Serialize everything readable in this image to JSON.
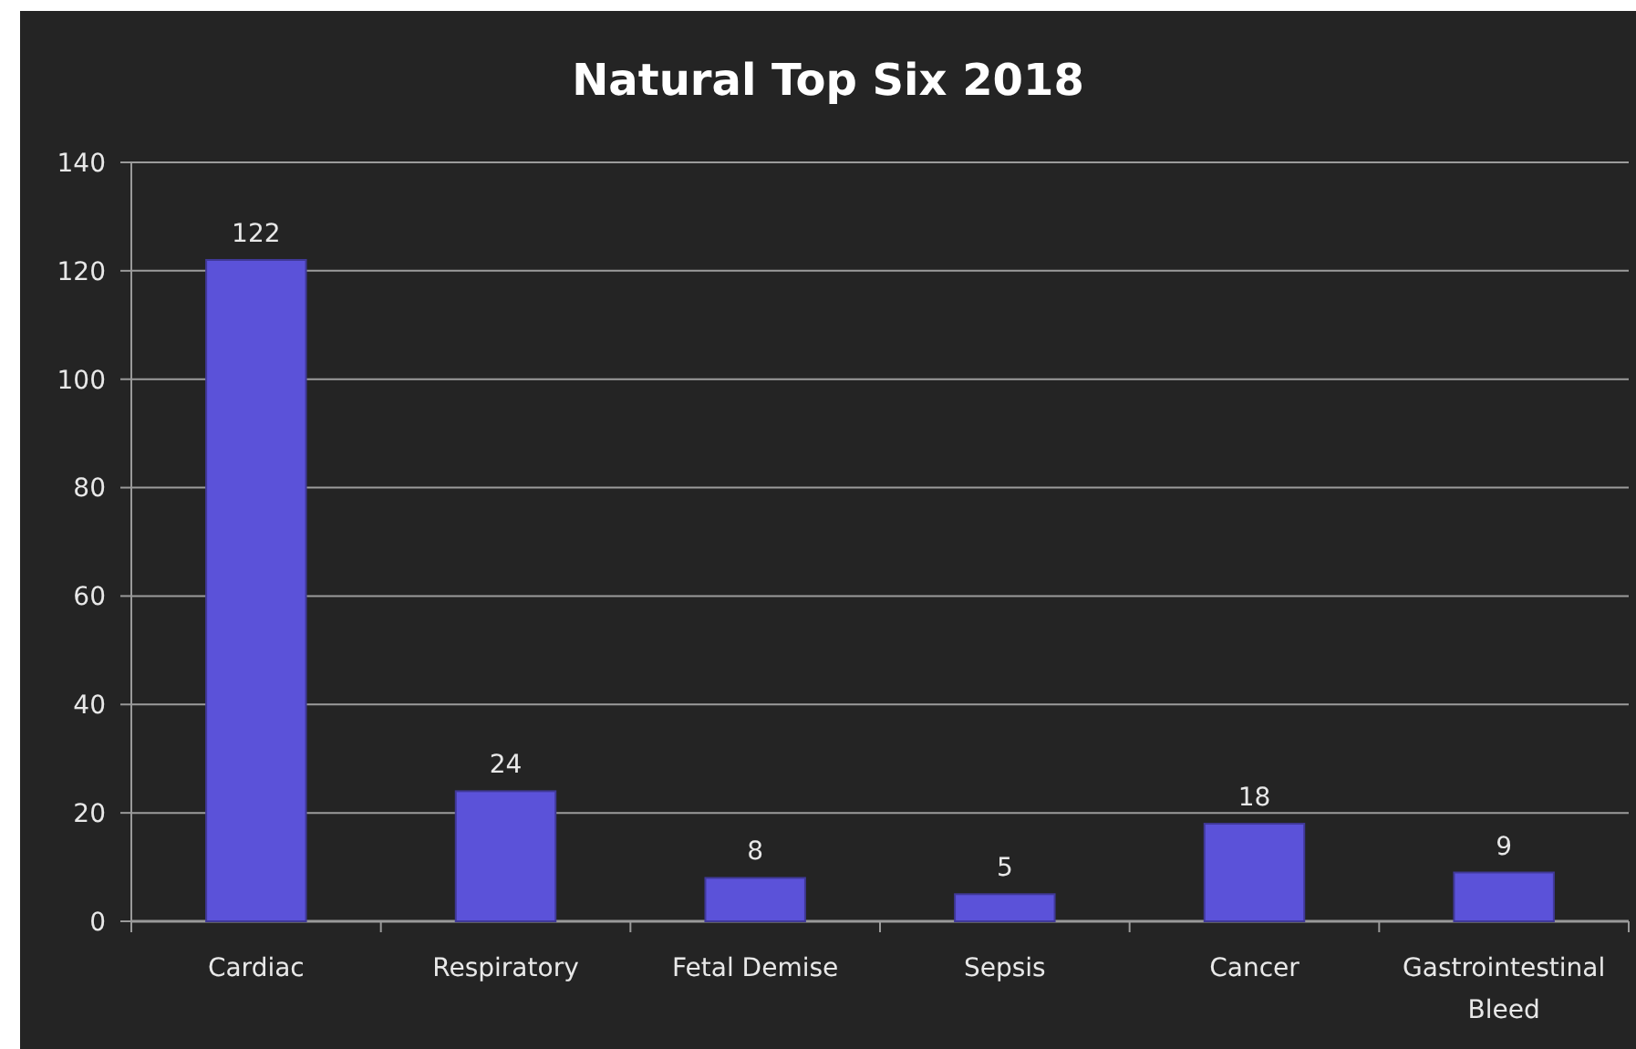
{
  "chart_data": {
    "type": "bar",
    "title": "Natural Top Six 2018",
    "categories": [
      "Cardiac",
      "Respiratory",
      "Fetal Demise",
      "Sepsis",
      "Cancer",
      "Gastrointestinal Bleed"
    ],
    "values": [
      122,
      24,
      8,
      5,
      18,
      9
    ],
    "color": "#5b52d9",
    "ylim": [
      0,
      140
    ],
    "yticks": [
      0,
      20,
      40,
      60,
      80,
      100,
      120,
      140
    ],
    "grid": "y",
    "data_labels": true
  }
}
